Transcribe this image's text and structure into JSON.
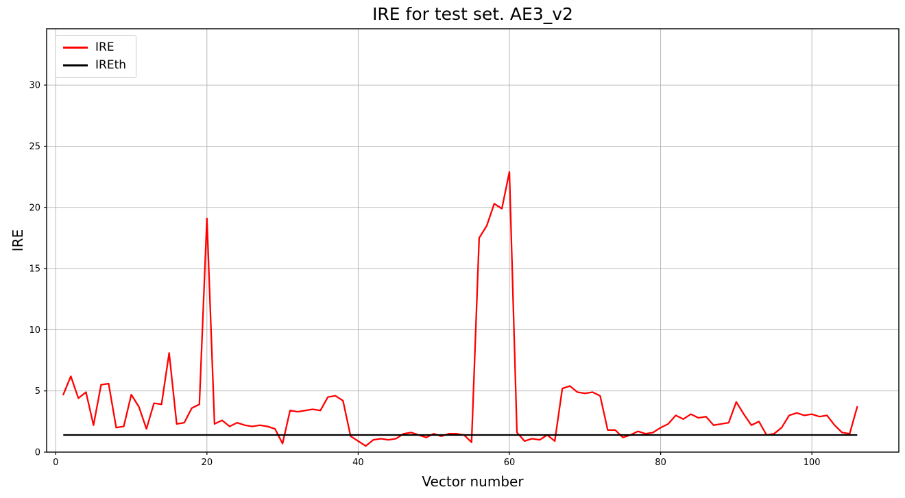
{
  "chart_data": {
    "type": "line",
    "title": "IRE for test set. AE3_v2",
    "xlabel": "Vector number",
    "ylabel": "IRE",
    "grid": true,
    "legend_position": "upper left",
    "xlim": [
      -1.2,
      111.5
    ],
    "ylim": [
      0,
      34.6
    ],
    "xticks": [
      0,
      20,
      40,
      60,
      80,
      100
    ],
    "yticks": [
      0,
      5,
      10,
      15,
      20,
      25,
      30
    ],
    "x_start": 1,
    "colors": {
      "ire": "#ff0000",
      "ireth": "#000000",
      "grid": "#b0b0b0",
      "axes": "#000000"
    },
    "series": [
      {
        "name": "IRE",
        "color": "#ff0000",
        "values": [
          4.7,
          6.2,
          4.4,
          4.9,
          2.2,
          5.5,
          5.6,
          2.0,
          2.1,
          4.7,
          3.7,
          1.9,
          4.0,
          3.9,
          8.1,
          2.3,
          2.4,
          3.6,
          3.9,
          19.1,
          2.3,
          2.6,
          2.1,
          2.4,
          2.2,
          2.1,
          2.2,
          2.1,
          1.9,
          0.7,
          3.4,
          3.3,
          3.4,
          3.5,
          3.4,
          4.5,
          4.6,
          4.2,
          1.3,
          0.9,
          0.5,
          1.0,
          1.1,
          1.0,
          1.1,
          1.5,
          1.6,
          1.4,
          1.2,
          1.5,
          1.3,
          1.5,
          1.5,
          1.4,
          0.8,
          17.5,
          18.5,
          20.3,
          19.9,
          22.9,
          1.6,
          0.9,
          1.1,
          1.0,
          1.4,
          0.9,
          5.2,
          5.4,
          4.9,
          4.8,
          4.9,
          4.6,
          1.8,
          1.8,
          1.2,
          1.4,
          1.7,
          1.5,
          1.6,
          2.0,
          2.3,
          3.0,
          2.7,
          3.1,
          2.8,
          2.9,
          2.2,
          2.3,
          2.4,
          4.1,
          3.1,
          2.2,
          2.5,
          1.4,
          1.5,
          2.0,
          3.0,
          3.2,
          3.0,
          3.1,
          2.9,
          3.0,
          2.2,
          1.6,
          1.5,
          3.7
        ]
      },
      {
        "name": "IREth",
        "color": "#000000",
        "constant": 1.4
      }
    ]
  }
}
